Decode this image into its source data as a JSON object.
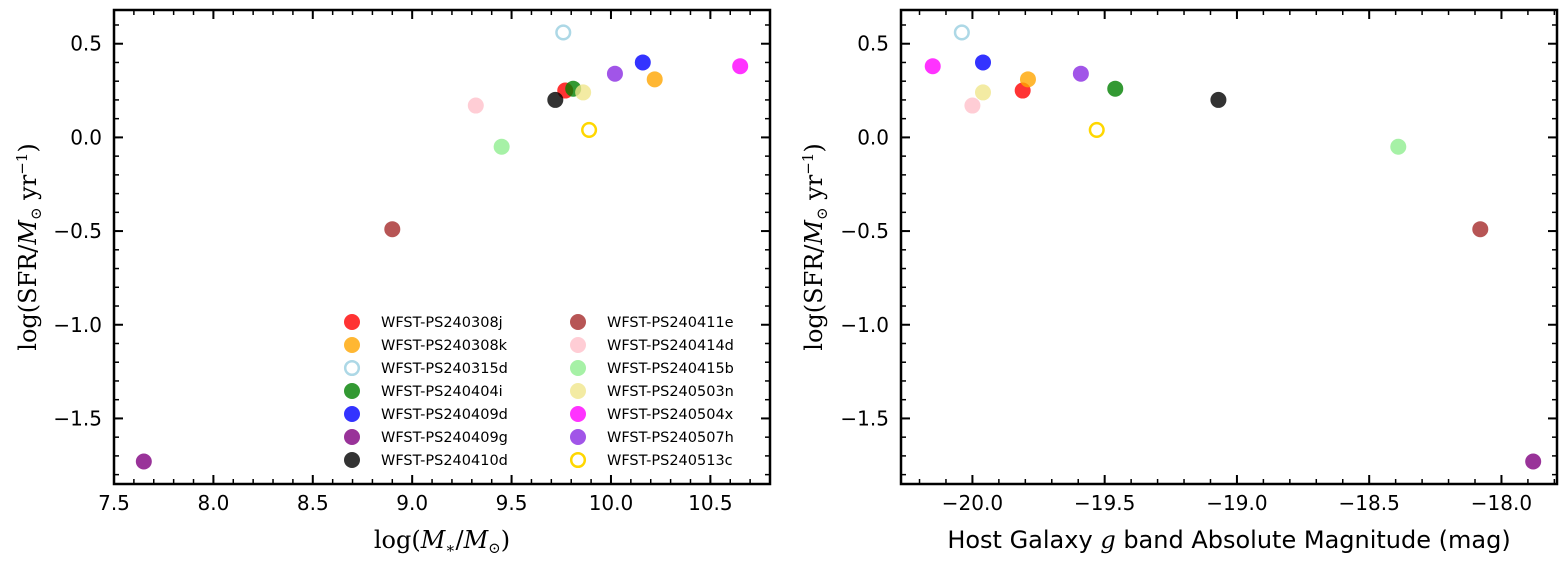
{
  "chart_data": [
    {
      "type": "scatter",
      "panel": "left",
      "xlabel": "log(M*/M⊙)",
      "ylabel": "log(SFR/M⊙ yr⁻¹)",
      "xlim": [
        7.5,
        10.8
      ],
      "ylim": [
        -1.85,
        0.68
      ],
      "xticks": [
        7.5,
        8.0,
        8.5,
        9.0,
        9.5,
        10.0,
        10.5
      ],
      "xtick_labels": [
        "7.5",
        "8.0",
        "8.5",
        "9.0",
        "9.5",
        "10.0",
        "10.5"
      ],
      "yticks": [
        0.5,
        0.0,
        -0.5,
        -1.0,
        -1.5
      ],
      "ytick_labels": [
        "0.5",
        "0.0",
        "−0.5",
        "−1.0",
        "−1.5"
      ],
      "legend_position": "lower-right",
      "points": [
        {
          "name": "WFST-PS240308j",
          "x": 9.77,
          "y": 0.25
        },
        {
          "name": "WFST-PS240308k",
          "x": 10.22,
          "y": 0.31
        },
        {
          "name": "WFST-PS240315d",
          "x": 9.76,
          "y": 0.56
        },
        {
          "name": "WFST-PS240404i",
          "x": 9.81,
          "y": 0.26
        },
        {
          "name": "WFST-PS240409d",
          "x": 10.16,
          "y": 0.4
        },
        {
          "name": "WFST-PS240409g",
          "x": 7.65,
          "y": -1.73
        },
        {
          "name": "WFST-PS240410d",
          "x": 9.72,
          "y": 0.2
        },
        {
          "name": "WFST-PS240411e",
          "x": 8.9,
          "y": -0.49
        },
        {
          "name": "WFST-PS240414d",
          "x": 9.32,
          "y": 0.17
        },
        {
          "name": "WFST-PS240415b",
          "x": 9.45,
          "y": -0.05
        },
        {
          "name": "WFST-PS240503n",
          "x": 9.86,
          "y": 0.24
        },
        {
          "name": "WFST-PS240504x",
          "x": 10.65,
          "y": 0.38
        },
        {
          "name": "WFST-PS240507h",
          "x": 10.02,
          "y": 0.34
        },
        {
          "name": "WFST-PS240513c",
          "x": 9.89,
          "y": 0.04
        }
      ]
    },
    {
      "type": "scatter",
      "panel": "right",
      "xlabel_parts": [
        "Host Galaxy ",
        "g",
        " band Absolute Magnitude (mag)"
      ],
      "ylabel": "log(SFR/M⊙ yr⁻¹)",
      "xlim": [
        -20.27,
        -17.79
      ],
      "ylim": [
        -1.85,
        0.68
      ],
      "xticks": [
        -20.0,
        -19.5,
        -19.0,
        -18.5,
        -18.0
      ],
      "xtick_labels": [
        "−20.0",
        "−19.5",
        "−19.0",
        "−18.5",
        "−18.0"
      ],
      "yticks": [
        0.5,
        0.0,
        -0.5,
        -1.0,
        -1.5
      ],
      "ytick_labels": [
        "0.5",
        "0.0",
        "−0.5",
        "−1.0",
        "−1.5"
      ],
      "points": [
        {
          "name": "WFST-PS240308j",
          "x": -19.81,
          "y": 0.25
        },
        {
          "name": "WFST-PS240308k",
          "x": -19.79,
          "y": 0.31
        },
        {
          "name": "WFST-PS240315d",
          "x": -20.04,
          "y": 0.56
        },
        {
          "name": "WFST-PS240404i",
          "x": -19.46,
          "y": 0.26
        },
        {
          "name": "WFST-PS240409d",
          "x": -19.96,
          "y": 0.4
        },
        {
          "name": "WFST-PS240409g",
          "x": -17.88,
          "y": -1.73
        },
        {
          "name": "WFST-PS240410d",
          "x": -19.07,
          "y": 0.2
        },
        {
          "name": "WFST-PS240411e",
          "x": -18.08,
          "y": -0.49
        },
        {
          "name": "WFST-PS240414d",
          "x": -20.0,
          "y": 0.17
        },
        {
          "name": "WFST-PS240415b",
          "x": -18.39,
          "y": -0.05
        },
        {
          "name": "WFST-PS240503n",
          "x": -19.96,
          "y": 0.24
        },
        {
          "name": "WFST-PS240504x",
          "x": -20.15,
          "y": 0.38
        },
        {
          "name": "WFST-PS240507h",
          "x": -19.59,
          "y": 0.34
        },
        {
          "name": "WFST-PS240513c",
          "x": -19.53,
          "y": 0.04
        }
      ]
    }
  ],
  "series": [
    {
      "name": "WFST-PS240308j",
      "color": "#ff0000",
      "filled": true
    },
    {
      "name": "WFST-PS240308k",
      "color": "#ffa500",
      "filled": true
    },
    {
      "name": "WFST-PS240315d",
      "color": "#add8e6",
      "filled": false
    },
    {
      "name": "WFST-PS240404i",
      "color": "#008000",
      "filled": true
    },
    {
      "name": "WFST-PS240409d",
      "color": "#0000ff",
      "filled": true
    },
    {
      "name": "WFST-PS240409g",
      "color": "#800080",
      "filled": true
    },
    {
      "name": "WFST-PS240410d",
      "color": "#000000",
      "filled": true
    },
    {
      "name": "WFST-PS240411e",
      "color": "#a52a2a",
      "filled": true
    },
    {
      "name": "WFST-PS240414d",
      "color": "#ffc0cb",
      "filled": true
    },
    {
      "name": "WFST-PS240415b",
      "color": "#90ee90",
      "filled": true
    },
    {
      "name": "WFST-PS240503n",
      "color": "#f0e68c",
      "filled": true
    },
    {
      "name": "WFST-PS240504x",
      "color": "#ff00ff",
      "filled": true
    },
    {
      "name": "WFST-PS240507h",
      "color": "#8a2be2",
      "filled": true
    },
    {
      "name": "WFST-PS240513c",
      "color": "#ffd700",
      "filled": false
    }
  ]
}
